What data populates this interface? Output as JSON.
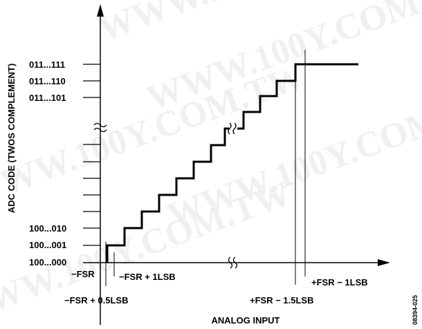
{
  "watermark_text": "WWW.100Y.COM.TW",
  "axes": {
    "y_label": "ADC CODE (TWOS COMPLEMENT)",
    "x_label": "ANALOG INPUT"
  },
  "y_codes": {
    "top": "011...111",
    "second": "011...110",
    "third": "011...101",
    "bottom2": "100...010",
    "bottom1": "100...001",
    "bottom0": "100...000"
  },
  "x_annotations": {
    "neg_fsr": "−FSR",
    "neg_fsr_1lsb": "−FSR + 1LSB",
    "neg_fsr_half": "−FSR + 0.5LSB",
    "pos_fsr_1_5": "+FSR − 1.5LSB",
    "pos_fsr_1lsb": "+FSR − 1LSB"
  },
  "figure_id": "08394-025",
  "colors": {
    "line": "#000000",
    "watermark": "#f0f0f0"
  }
}
